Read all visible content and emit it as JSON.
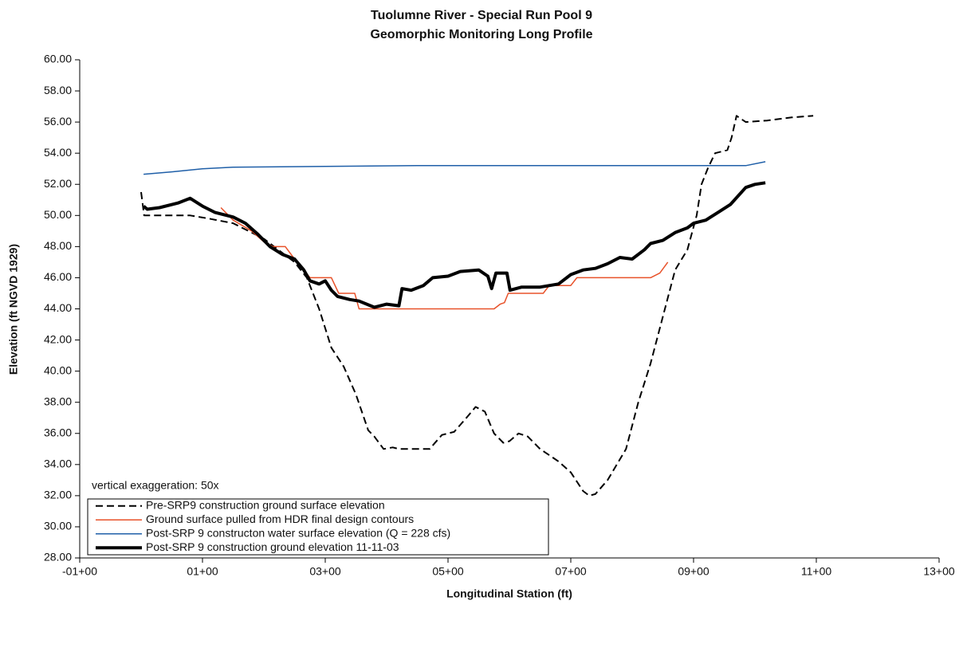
{
  "chart_data": {
    "type": "line",
    "title": "Tuolumne River - Special Run Pool 9",
    "subtitle": "Geomorphic Monitoring Long Profile",
    "x_label": "Longitudinal Station (ft)",
    "y_label": "Elevation (ft NGVD 1929)",
    "annotation": "vertical exaggeration: 50x",
    "legend": "lower left",
    "xlim": [
      -100,
      1300
    ],
    "ylim": [
      28,
      60
    ],
    "xticks": [
      {
        "value": -100,
        "label": "-01+00"
      },
      {
        "value": 100,
        "label": "01+00"
      },
      {
        "value": 300,
        "label": "03+00"
      },
      {
        "value": 500,
        "label": "05+00"
      },
      {
        "value": 700,
        "label": "07+00"
      },
      {
        "value": 900,
        "label": "09+00"
      },
      {
        "value": 1100,
        "label": "11+00"
      },
      {
        "value": 1300,
        "label": "13+00"
      }
    ],
    "yticks": [
      {
        "value": 28,
        "label": "28.00"
      },
      {
        "value": 30,
        "label": "30.00"
      },
      {
        "value": 32,
        "label": "32.00"
      },
      {
        "value": 34,
        "label": "34.00"
      },
      {
        "value": 36,
        "label": "36.00"
      },
      {
        "value": 38,
        "label": "38.00"
      },
      {
        "value": 40,
        "label": "40.00"
      },
      {
        "value": 42,
        "label": "42.00"
      },
      {
        "value": 44,
        "label": "44.00"
      },
      {
        "value": 46,
        "label": "46.00"
      },
      {
        "value": 48,
        "label": "48.00"
      },
      {
        "value": 50,
        "label": "50.00"
      },
      {
        "value": 52,
        "label": "52.00"
      },
      {
        "value": 54,
        "label": "54.00"
      },
      {
        "value": 56,
        "label": "56.00"
      },
      {
        "value": 58,
        "label": "58.00"
      },
      {
        "value": 60,
        "label": "60.00"
      }
    ],
    "series": [
      {
        "name": "Pre-SRP9 construction ground surface elevation",
        "color": "#000000",
        "dash": true,
        "width": 2,
        "x": [
          0,
          5,
          80,
          110,
          150,
          200,
          250,
          270,
          290,
          310,
          330,
          350,
          370,
          380,
          395,
          410,
          420,
          470,
          490,
          510,
          530,
          545,
          560,
          575,
          590,
          600,
          615,
          630,
          650,
          680,
          700,
          720,
          730,
          740,
          760,
          790,
          810,
          830,
          850,
          870,
          890,
          905,
          913,
          923,
          935,
          955,
          962,
          970,
          985,
          1020,
          1060,
          1095
        ],
        "values": [
          51.5,
          50.0,
          50.0,
          49.8,
          49.5,
          48.5,
          47.0,
          46.0,
          44.0,
          41.5,
          40.3,
          38.5,
          36.2,
          35.8,
          35.0,
          35.1,
          35.0,
          35.0,
          35.9,
          36.1,
          37.0,
          37.7,
          37.4,
          36.0,
          35.4,
          35.5,
          36.0,
          35.8,
          35.0,
          34.2,
          33.5,
          32.3,
          32.0,
          32.1,
          33.0,
          35.0,
          38.0,
          40.5,
          43.5,
          46.5,
          47.8,
          50.0,
          52.0,
          53.0,
          54.0,
          54.2,
          55.0,
          56.4,
          56.0,
          56.1,
          56.3,
          56.4
        ]
      },
      {
        "name": "Ground surface pulled from HDR final design contours",
        "color": "#e8522a",
        "dash": false,
        "width": 1.5,
        "x": [
          130,
          150,
          180,
          200,
          215,
          235,
          250,
          265,
          275,
          310,
          322,
          348,
          355,
          575,
          585,
          592,
          598,
          655,
          665,
          700,
          710,
          830,
          845,
          858
        ],
        "values": [
          50.5,
          49.7,
          49.0,
          48.3,
          48.0,
          48.0,
          47.2,
          46.5,
          46.0,
          46.0,
          45.0,
          45.0,
          44.0,
          44.0,
          44.3,
          44.4,
          45.0,
          45.0,
          45.5,
          45.5,
          46.0,
          46.0,
          46.3,
          47.0
        ]
      },
      {
        "name": "Post-SRP 9 constructon water surface elevation (Q = 228 cfs)",
        "color": "#1f5fa8",
        "dash": false,
        "width": 1.5,
        "x": [
          4,
          50,
          100,
          150,
          300,
          450,
          600,
          800,
          985,
          1017
        ],
        "values": [
          52.65,
          52.8,
          53.0,
          53.1,
          53.15,
          53.2,
          53.2,
          53.2,
          53.2,
          53.45
        ]
      },
      {
        "name": "Post-SRP 9 construction ground elevation 11-11-03",
        "color": "#000000",
        "dash": false,
        "width": 4,
        "x": [
          4,
          10,
          30,
          60,
          80,
          100,
          120,
          150,
          170,
          190,
          210,
          230,
          250,
          265,
          275,
          290,
          300,
          310,
          320,
          340,
          355,
          380,
          400,
          420,
          425,
          440,
          460,
          475,
          500,
          520,
          550,
          565,
          571,
          578,
          596,
          601,
          620,
          650,
          680,
          700,
          720,
          740,
          760,
          780,
          800,
          820,
          830,
          850,
          870,
          890,
          900,
          920,
          940,
          960,
          985,
          1000,
          1017
        ],
        "values": [
          50.6,
          50.4,
          50.5,
          50.8,
          51.1,
          50.6,
          50.2,
          49.9,
          49.5,
          48.8,
          48.0,
          47.5,
          47.2,
          46.5,
          45.8,
          45.6,
          45.8,
          45.2,
          44.8,
          44.6,
          44.5,
          44.1,
          44.3,
          44.2,
          45.3,
          45.2,
          45.5,
          46.0,
          46.1,
          46.4,
          46.5,
          46.1,
          45.3,
          46.3,
          46.3,
          45.2,
          45.4,
          45.4,
          45.6,
          46.2,
          46.5,
          46.6,
          46.9,
          47.3,
          47.2,
          47.8,
          48.2,
          48.4,
          48.9,
          49.2,
          49.5,
          49.7,
          50.2,
          50.7,
          51.8,
          52.0,
          52.1
        ]
      }
    ]
  }
}
